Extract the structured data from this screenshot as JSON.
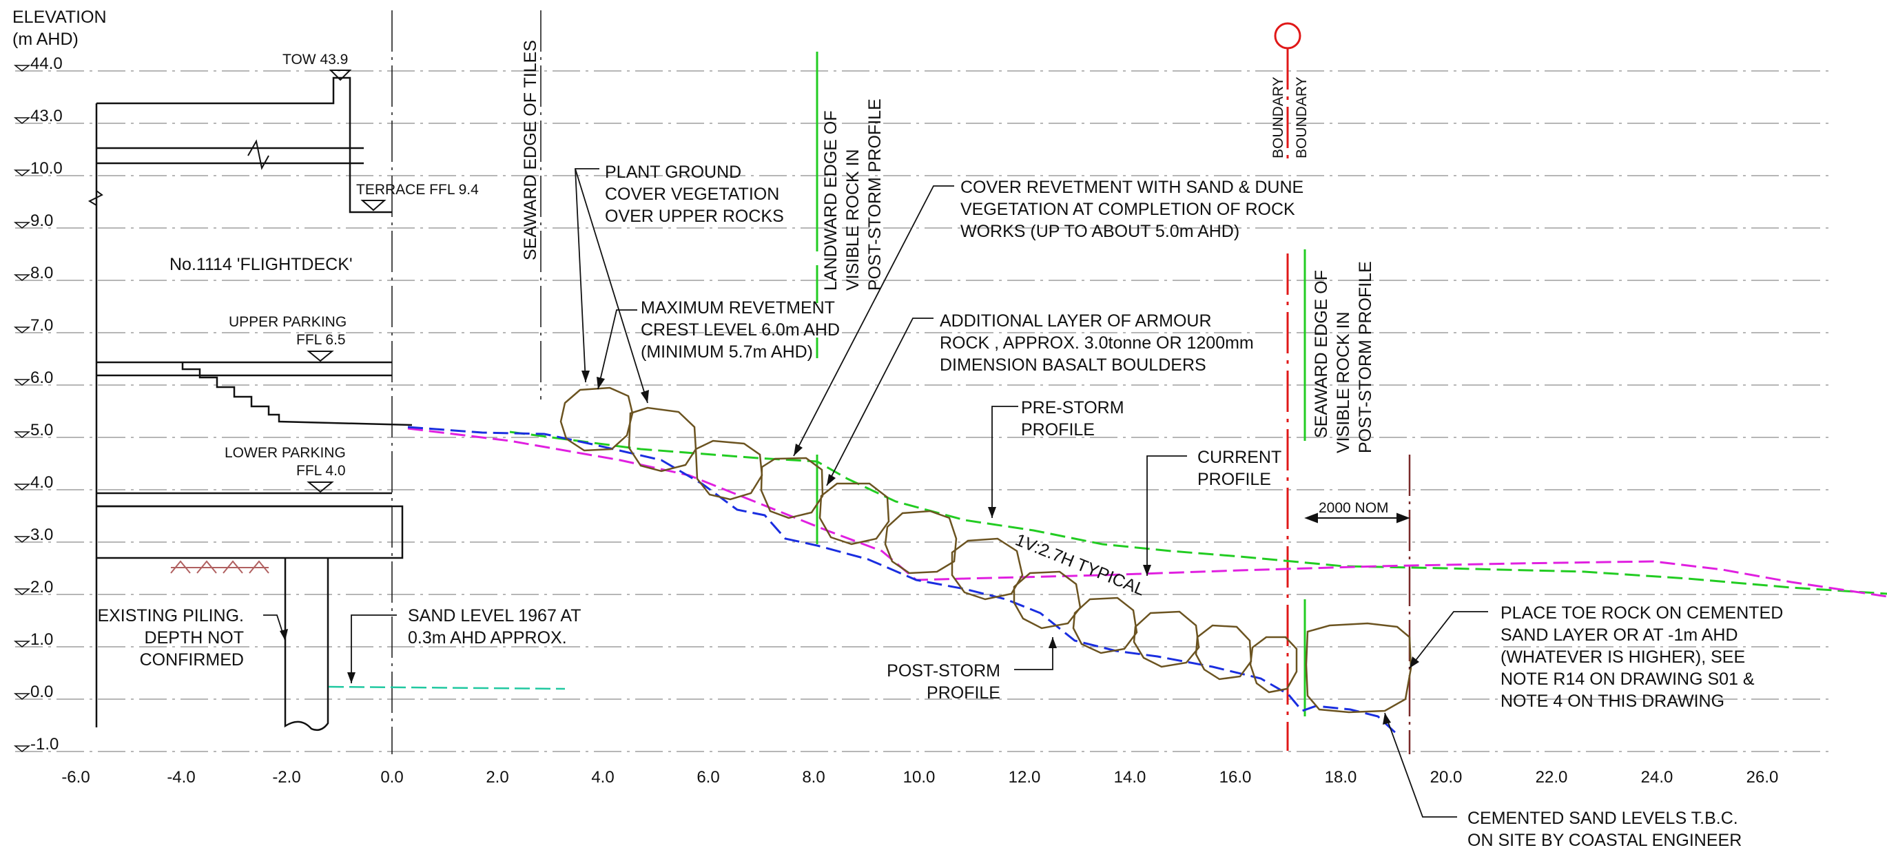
{
  "axis": {
    "title_line1": "ELEVATION",
    "title_line2": "(m AHD)",
    "y_ticks": [
      "44.0",
      "43.0",
      "10.0",
      "9.0",
      "8.0",
      "7.0",
      "6.0",
      "5.0",
      "4.0",
      "3.0",
      "2.0",
      "1.0",
      "0.0",
      "-1.0"
    ],
    "x_ticks": [
      "-6.0",
      "-4.0",
      "-2.0",
      "0.0",
      "2.0",
      "4.0",
      "6.0",
      "8.0",
      "10.0",
      "12.0",
      "14.0",
      "16.0",
      "18.0",
      "20.0",
      "22.0",
      "24.0",
      "26.0"
    ]
  },
  "building": {
    "name": "No.1114 'FLIGHTDECK'",
    "tow": "TOW 43.9",
    "terrace": "TERRACE FFL 9.4",
    "upper_parking_1": "UPPER PARKING",
    "upper_parking_2": "FFL 6.5",
    "lower_parking_1": "LOWER PARKING",
    "lower_parking_2": "FFL 4.0"
  },
  "vertical_labels": {
    "seaward_tiles": "SEAWARD EDGE OF TILES",
    "landward_rock": [
      "LANDWARD EDGE OF",
      "VISIBLE ROCK IN",
      "POST-STORM PROFILE"
    ],
    "boundary": "BOUNDARY",
    "seaward_rock": [
      "SEAWARD EDGE OF",
      "VISIBLE ROCK IN",
      "POST-STORM PROFILE"
    ]
  },
  "notes": {
    "plant": [
      "PLANT GROUND",
      "COVER VEGETATION",
      "OVER UPPER ROCKS"
    ],
    "crest": [
      "MAXIMUM REVETMENT",
      "CREST LEVEL 6.0m AHD",
      "(MINIMUM 5.7m AHD)"
    ],
    "cover": [
      "COVER REVETMENT WITH SAND & DUNE",
      "VEGETATION AT COMPLETION OF ROCK",
      "WORKS (UP TO ABOUT 5.0m AHD)"
    ],
    "armour": [
      "ADDITIONAL LAYER OF ARMOUR",
      "ROCK , APPROX. 3.0tonne OR 1200mm",
      "DIMENSION BASALT BOULDERS"
    ],
    "prestorm": [
      "PRE-STORM",
      "PROFILE"
    ],
    "current": [
      "CURRENT",
      "PROFILE"
    ],
    "slope": "1V:2.7H TYPICAL",
    "dim": "2000 NOM",
    "piling": [
      "EXISTING PILING.",
      "DEPTH NOT",
      "CONFIRMED"
    ],
    "sand1967": [
      "SAND LEVEL 1967 AT",
      "0.3m AHD APPROX."
    ],
    "poststorm": [
      "POST-STORM",
      "PROFILE"
    ],
    "toe": [
      "PLACE TOE ROCK ON CEMENTED",
      "SAND LAYER OR AT -1m AHD",
      "(WHATEVER IS HIGHER), SEE",
      "NOTE R14 ON DRAWING S01 &",
      "NOTE 4 ON THIS DRAWING"
    ],
    "cemented": [
      "CEMENTED SAND LEVELS T.B.C.",
      "ON SITE BY COASTAL ENGINEER"
    ]
  },
  "colors": {
    "ink": "#111111",
    "grid": "#8a8a8a",
    "pre_storm": "#22cc22",
    "current": "#e020e0",
    "post_storm": "#1a2ee0",
    "rock": "#6b5320",
    "boundary": "#e01818",
    "edge_mark": "#22cc22",
    "toe_line": "#7a2a2a",
    "sand_1967": "#20c8a0",
    "pile_hatch": "#b06060"
  }
}
